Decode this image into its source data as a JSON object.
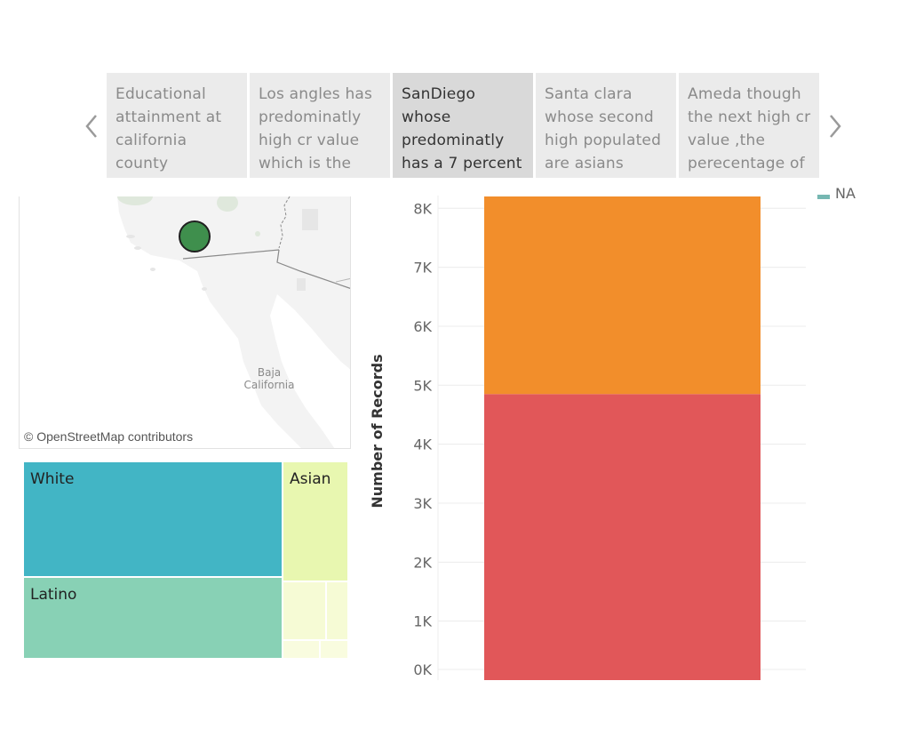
{
  "story": {
    "points": [
      {
        "caption": "Educational attainment at california county",
        "active": false
      },
      {
        "caption": "Los angles has predominatly high cr value which is the",
        "active": false
      },
      {
        "caption": "SanDiego whose predominatly has a 7 percent",
        "active": true
      },
      {
        "caption": "Santa clara whose second high populated are asians",
        "active": false
      },
      {
        "caption": "Ameda though the next high cr value ,the perecentage of",
        "active": false
      }
    ],
    "prev_icon": "chevron-left-icon",
    "next_icon": "chevron-right-icon"
  },
  "map": {
    "region_label": "Baja\nCalifornia",
    "attribution": "© OpenStreetMap contributors",
    "marker_color": "#3f8f4d"
  },
  "treemap": {
    "cells": [
      {
        "label": "White",
        "color": "#42b5c5"
      },
      {
        "label": "Asian",
        "color": "#e8f7b0"
      },
      {
        "label": "Latino",
        "color": "#88d1b5"
      },
      {
        "label": "",
        "color": "#f6fbd5"
      },
      {
        "label": "",
        "color": "#f6fbd5"
      },
      {
        "label": "",
        "color": "#f9fcdf"
      },
      {
        "label": "",
        "color": "#f9fcdf"
      }
    ]
  },
  "legend": {
    "label": "NA",
    "color": "#76b7b2"
  },
  "chart_data": {
    "type": "bar",
    "ylabel": "Number of Records",
    "xlabel": "",
    "ylim": [
      0,
      8200
    ],
    "yticks": [
      0,
      1000,
      2000,
      3000,
      4000,
      5000,
      6000,
      7000,
      8000
    ],
    "ytick_labels": [
      "0K",
      "1K",
      "2K",
      "3K",
      "4K",
      "5K",
      "6K",
      "7K",
      "8K"
    ],
    "categories": [
      ""
    ],
    "series": [
      {
        "color": "#e15759",
        "values": [
          4850
        ]
      },
      {
        "color": "#f28e2b",
        "values": [
          3350
        ]
      }
    ],
    "stacked": true,
    "grid": true
  }
}
